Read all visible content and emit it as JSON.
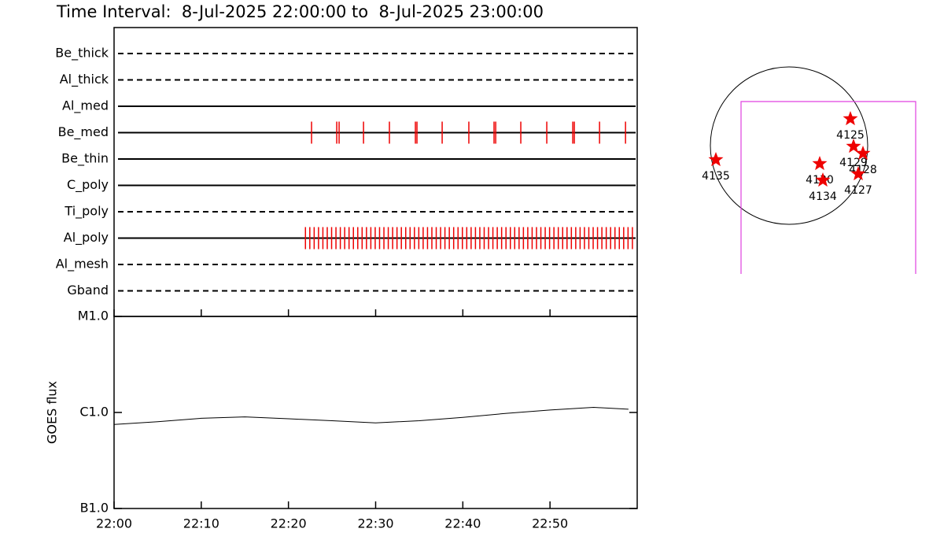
{
  "title": "Time Interval:  8-Jul-2025 22:00:00 to  8-Jul-2025 23:00:00",
  "chart_data": [
    {
      "type": "timeline",
      "categories": [
        "Be_thick",
        "Al_thick",
        "Al_med",
        "Be_med",
        "Be_thin",
        "C_poly",
        "Ti_poly",
        "Al_poly",
        "Al_mesh",
        "Gband"
      ],
      "line_styles": [
        "dashed",
        "dashed",
        "solid",
        "solid",
        "solid",
        "solid",
        "dashed",
        "solid",
        "dashed",
        "dashed"
      ],
      "xlim": [
        0,
        60
      ],
      "series": [
        {
          "name": "Be_med",
          "color": "#ee0000",
          "x": [
            22.65,
            25.54,
            25.81,
            28.61,
            31.58,
            34.56,
            34.74,
            37.63,
            40.69,
            43.58,
            43.77,
            46.65,
            49.63,
            52.61,
            52.79,
            55.68,
            58.66
          ]
        },
        {
          "name": "Al_poly",
          "color": "#ee0000",
          "x": [
            21.95,
            22.45,
            22.95,
            23.45,
            23.95,
            24.45,
            24.95,
            25.45,
            25.95,
            26.45,
            26.95,
            27.45,
            27.95,
            28.45,
            28.95,
            29.45,
            29.95,
            30.45,
            30.95,
            31.45,
            31.95,
            32.45,
            32.95,
            33.45,
            33.95,
            34.45,
            34.95,
            35.45,
            35.95,
            36.45,
            36.95,
            37.45,
            37.95,
            38.45,
            38.95,
            39.45,
            39.95,
            40.45,
            40.95,
            41.45,
            41.95,
            42.45,
            42.95,
            43.45,
            43.95,
            44.45,
            44.95,
            45.45,
            45.95,
            46.45,
            46.95,
            47.45,
            47.95,
            48.45,
            48.95,
            49.45,
            49.95,
            50.45,
            50.95,
            51.45,
            51.95,
            52.45,
            52.95,
            53.45,
            53.95,
            54.45,
            54.95,
            55.45,
            55.95,
            56.45,
            56.95,
            57.45,
            57.95,
            58.45,
            58.95,
            59.45
          ]
        }
      ]
    },
    {
      "type": "line",
      "ylabel": "GOES flux",
      "log_y": true,
      "color": "#000000",
      "x": [
        0,
        5,
        10,
        15,
        20,
        25,
        30,
        35,
        40,
        45,
        50,
        55,
        59
      ],
      "values": [
        7.5e-07,
        8e-07,
        8.7e-07,
        9e-07,
        8.6e-07,
        8.2e-07,
        7.8e-07,
        8.2e-07,
        8.9e-07,
        9.8e-07,
        1.06e-06,
        1.13e-06,
        1.08e-06
      ],
      "xlim": [
        0,
        60
      ],
      "xticks": [
        {
          "value": 0,
          "label": "22:00"
        },
        {
          "value": 10,
          "label": "22:10"
        },
        {
          "value": 20,
          "label": "22:20"
        },
        {
          "value": 30,
          "label": "22:30"
        },
        {
          "value": 40,
          "label": "22:40"
        },
        {
          "value": 50,
          "label": "22:50"
        }
      ],
      "ylim": [
        1e-07,
        1e-05
      ],
      "yticks": [
        {
          "value": 1e-05,
          "label": "M1.0"
        },
        {
          "value": 1e-06,
          "label": "C1.0"
        },
        {
          "value": 1e-07,
          "label": "B1.0"
        }
      ]
    },
    {
      "type": "scatter",
      "color": "#ee0000",
      "xlim": [
        -1.2,
        1.9
      ],
      "ylim": [
        -1.2,
        1.2
      ],
      "labels": [
        "4125",
        "4129",
        "4128",
        "4130",
        "4134",
        "4127",
        "4135"
      ],
      "x": [
        0.78,
        0.82,
        0.94,
        0.39,
        0.43,
        0.88,
        -0.93
      ],
      "y": [
        0.34,
        -0.01,
        -0.1,
        -0.23,
        -0.44,
        -0.36,
        -0.18
      ]
    }
  ]
}
